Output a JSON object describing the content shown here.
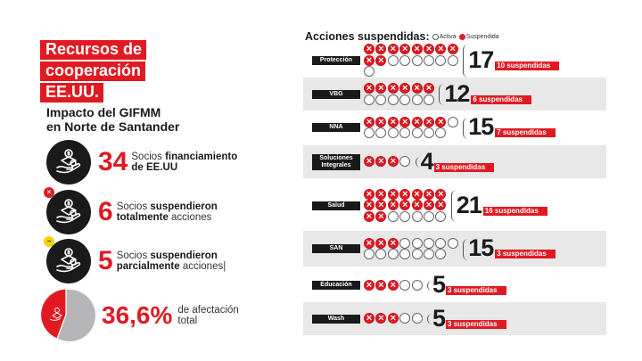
{
  "left": {
    "title_lines": [
      "Recursos de",
      "cooperación",
      "EE.UU."
    ],
    "subtitle_lines": [
      "Impacto del GIFMM",
      "en Norte de Santander"
    ],
    "stats": [
      {
        "number": "34",
        "text_plain_1": "Socios ",
        "text_bold_1": "financiamiento",
        "text_bold_2": "de EE.UU",
        "text_plain_2": "",
        "icon": "hand-money-icon",
        "badge": null
      },
      {
        "number": "6",
        "text_plain_1": "Socios ",
        "text_bold_1": "suspendieron",
        "text_bold_2": "totalmente",
        "text_plain_2": " acciones",
        "icon": "hand-money-icon",
        "badge": "×"
      },
      {
        "number": "5",
        "text_plain_1": "Socios ",
        "text_bold_1": "suspendieron",
        "text_bold_2": "parcialmente",
        "text_plain_2": " acciones|",
        "icon": "hand-money-icon",
        "badge": "−"
      }
    ],
    "affectation": {
      "percent": "36,6%",
      "text_line_1": "de afectación",
      "text_line_2": "total",
      "value": 36.6
    }
  },
  "right": {
    "heading": "Acciones suspendidas:",
    "legend": {
      "active": "Activa",
      "suspended": "Suspendida"
    },
    "colors": {
      "suspended": "#e11a22",
      "label_bg": "#1a1a1a",
      "band": "#e8e8e9"
    },
    "sectors": [
      {
        "label": "Protección",
        "total": "17",
        "suspended": 10,
        "tag": "10 suspendidas",
        "per_row": 8
      },
      {
        "label": "VBG",
        "total": "12",
        "suspended": 6,
        "tag": "6 suspendidas",
        "per_row": 6
      },
      {
        "label": "NNA",
        "total": "15",
        "suspended": 7,
        "tag": "7 suspendidas",
        "per_row": 8
      },
      {
        "label_line_1": "Soluciones",
        "label_line_2": "Integrales",
        "total": "4",
        "suspended": 3,
        "tag": "3 suspendidas",
        "per_row": 4
      },
      {
        "label": "Salud",
        "total": "21",
        "suspended": 16,
        "tag": "16 suspendidas",
        "per_row": 7
      },
      {
        "label": "SAN",
        "total": "15",
        "suspended": 3,
        "tag": "3 suspendidas",
        "per_row": 8
      },
      {
        "label": "Educación",
        "total": "5",
        "suspended": 3,
        "tag": "3 suspendidas",
        "per_row": 5
      },
      {
        "label": "Wash",
        "total": "5",
        "suspended": 3,
        "tag": "3 suspendidas",
        "per_row": 5
      }
    ]
  }
}
